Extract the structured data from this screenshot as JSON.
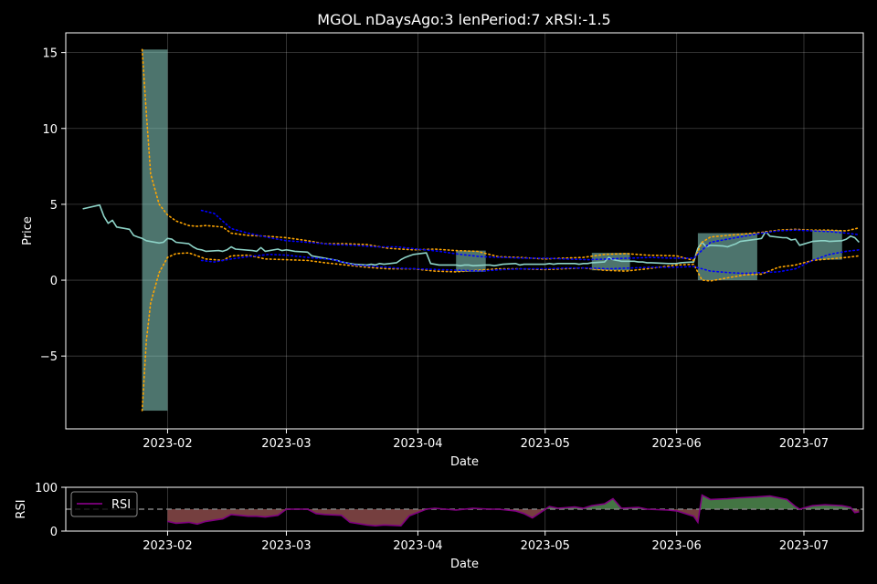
{
  "chart_data": [
    {
      "type": "line",
      "title": "MGOL nDaysAgo:3 lenPeriod:7 xRSI:-1.5",
      "xlabel": "Date",
      "ylabel": "Price",
      "xlim": [
        "2023-01-08",
        "2023-07-15"
      ],
      "ylim": [
        -9.8,
        16.3
      ],
      "yticks": [
        -5,
        0,
        5,
        10,
        15
      ],
      "ytick_labels": [
        "−5",
        "0",
        "5",
        "10",
        "15"
      ],
      "xticks": [
        "2023-02-01",
        "2023-03-01",
        "2023-04-01",
        "2023-05-01",
        "2023-06-01",
        "2023-07-01"
      ],
      "xtick_labels": [
        "2023-02",
        "2023-03",
        "2023-04",
        "2023-05",
        "2023-06",
        "2023-07"
      ],
      "grid": true,
      "colors": {
        "price": "#8dd3c7",
        "bollinger": "#ffa500",
        "envelope": "#0000ff",
        "band_fill": "#8dd3c7"
      },
      "series": [
        {
          "role": "price",
          "x": [
            "2023-01-12",
            "2023-01-16",
            "2023-01-17",
            "2023-01-18",
            "2023-01-19",
            "2023-01-20",
            "2023-01-23",
            "2023-01-24",
            "2023-01-25",
            "2023-01-26",
            "2023-01-27",
            "2023-01-30",
            "2023-01-31",
            "2023-02-01",
            "2023-02-02",
            "2023-02-03",
            "2023-02-06",
            "2023-02-07",
            "2023-02-08",
            "2023-02-09",
            "2023-02-10",
            "2023-02-13",
            "2023-02-14",
            "2023-02-15",
            "2023-02-16",
            "2023-02-17",
            "2023-02-21",
            "2023-02-22",
            "2023-02-23",
            "2023-02-24",
            "2023-02-27",
            "2023-02-28",
            "2023-03-01",
            "2023-03-02",
            "2023-03-03",
            "2023-03-06",
            "2023-03-07",
            "2023-03-08",
            "2023-03-09",
            "2023-03-10",
            "2023-03-13",
            "2023-03-14",
            "2023-03-15",
            "2023-03-16",
            "2023-03-17",
            "2023-03-20",
            "2023-03-21",
            "2023-03-22",
            "2023-03-23",
            "2023-03-24",
            "2023-03-27",
            "2023-03-28",
            "2023-03-29",
            "2023-03-30",
            "2023-03-31",
            "2023-04-03",
            "2023-04-04",
            "2023-04-05",
            "2023-04-06",
            "2023-04-10",
            "2023-04-11",
            "2023-04-12",
            "2023-04-13",
            "2023-04-14",
            "2023-04-17",
            "2023-04-18",
            "2023-04-19",
            "2023-04-20",
            "2023-04-21",
            "2023-04-24",
            "2023-04-25",
            "2023-04-26",
            "2023-04-27",
            "2023-04-28",
            "2023-05-01",
            "2023-05-02",
            "2023-05-03",
            "2023-05-04",
            "2023-05-05",
            "2023-05-08",
            "2023-05-09",
            "2023-05-10",
            "2023-05-11",
            "2023-05-12",
            "2023-05-15",
            "2023-05-16",
            "2023-05-17",
            "2023-05-18",
            "2023-05-19",
            "2023-05-22",
            "2023-05-23",
            "2023-05-24",
            "2023-05-25",
            "2023-05-26",
            "2023-05-30",
            "2023-05-31",
            "2023-06-01",
            "2023-06-02",
            "2023-06-05",
            "2023-06-06",
            "2023-06-07",
            "2023-06-08",
            "2023-06-09",
            "2023-06-12",
            "2023-06-13",
            "2023-06-14",
            "2023-06-15",
            "2023-06-16",
            "2023-06-20",
            "2023-06-21",
            "2023-06-22",
            "2023-06-23",
            "2023-06-26",
            "2023-06-27",
            "2023-06-28",
            "2023-06-29",
            "2023-06-30",
            "2023-07-03",
            "2023-07-05",
            "2023-07-06",
            "2023-07-07",
            "2023-07-10",
            "2023-07-11",
            "2023-07-12",
            "2023-07-13",
            "2023-07-14"
          ],
          "y": [
            4.7,
            4.95,
            4.2,
            3.75,
            3.95,
            3.5,
            3.35,
            2.95,
            2.85,
            2.75,
            2.6,
            2.45,
            2.5,
            2.75,
            2.7,
            2.5,
            2.4,
            2.2,
            2.05,
            2.0,
            1.9,
            1.95,
            1.9,
            2.0,
            2.2,
            2.05,
            1.95,
            1.9,
            2.15,
            1.9,
            2.05,
            1.95,
            2.0,
            1.95,
            1.9,
            1.85,
            1.6,
            1.55,
            1.5,
            1.45,
            1.3,
            1.2,
            1.15,
            1.1,
            1.05,
            1.0,
            1.05,
            1.0,
            1.1,
            1.05,
            1.15,
            1.35,
            1.5,
            1.6,
            1.7,
            1.8,
            1.1,
            1.05,
            1.0,
            1.0,
            0.95,
            1.0,
            1.0,
            0.95,
            1.0,
            1.0,
            0.95,
            1.0,
            1.05,
            1.1,
            1.0,
            1.05,
            1.05,
            1.05,
            1.05,
            1.1,
            1.05,
            1.1,
            1.1,
            1.1,
            1.05,
            1.1,
            1.1,
            1.15,
            1.2,
            1.5,
            1.35,
            1.3,
            1.25,
            1.25,
            1.2,
            1.2,
            1.15,
            1.15,
            1.1,
            1.1,
            1.1,
            1.15,
            1.2,
            2.1,
            2.5,
            2.2,
            2.3,
            2.25,
            2.2,
            2.3,
            2.4,
            2.55,
            2.7,
            2.75,
            3.2,
            2.9,
            2.8,
            2.8,
            2.65,
            2.7,
            2.3,
            2.55,
            2.6,
            2.6,
            2.55,
            2.6,
            2.7,
            2.9,
            2.8,
            2.5
          ]
        },
        {
          "role": "bollinger-upper",
          "x": [
            "2023-01-26",
            "2023-01-27",
            "2023-01-28",
            "2023-01-30",
            "2023-02-01",
            "2023-02-03",
            "2023-02-06",
            "2023-02-08",
            "2023-02-10",
            "2023-02-14",
            "2023-02-16",
            "2023-02-20",
            "2023-02-24",
            "2023-03-01",
            "2023-03-06",
            "2023-03-10",
            "2023-03-15",
            "2023-03-20",
            "2023-03-25",
            "2023-03-31",
            "2023-04-05",
            "2023-04-10",
            "2023-04-15",
            "2023-04-20",
            "2023-04-25",
            "2023-05-01",
            "2023-05-05",
            "2023-05-10",
            "2023-05-15",
            "2023-05-20",
            "2023-05-25",
            "2023-06-01",
            "2023-06-05",
            "2023-06-07",
            "2023-06-09",
            "2023-06-13",
            "2023-06-17",
            "2023-06-21",
            "2023-06-25",
            "2023-06-29",
            "2023-07-03",
            "2023-07-07",
            "2023-07-11",
            "2023-07-14"
          ],
          "y": [
            15.2,
            11.0,
            7.0,
            5.0,
            4.3,
            3.9,
            3.6,
            3.55,
            3.6,
            3.5,
            3.1,
            2.95,
            2.9,
            2.8,
            2.6,
            2.4,
            2.4,
            2.35,
            2.1,
            2.0,
            2.05,
            1.95,
            1.9,
            1.55,
            1.5,
            1.4,
            1.45,
            1.5,
            1.7,
            1.75,
            1.65,
            1.6,
            1.3,
            2.5,
            2.85,
            2.95,
            3.05,
            3.15,
            3.3,
            3.35,
            3.3,
            3.3,
            3.25,
            3.45
          ]
        },
        {
          "role": "bollinger-lower",
          "x": [
            "2023-01-26",
            "2023-01-27",
            "2023-01-28",
            "2023-01-30",
            "2023-02-01",
            "2023-02-03",
            "2023-02-06",
            "2023-02-08",
            "2023-02-10",
            "2023-02-14",
            "2023-02-16",
            "2023-02-20",
            "2023-02-24",
            "2023-03-01",
            "2023-03-06",
            "2023-03-10",
            "2023-03-15",
            "2023-03-20",
            "2023-03-25",
            "2023-03-31",
            "2023-04-05",
            "2023-04-10",
            "2023-04-15",
            "2023-04-20",
            "2023-04-25",
            "2023-05-01",
            "2023-05-05",
            "2023-05-10",
            "2023-05-15",
            "2023-05-20",
            "2023-05-25",
            "2023-06-01",
            "2023-06-05",
            "2023-06-07",
            "2023-06-09",
            "2023-06-13",
            "2023-06-17",
            "2023-06-21",
            "2023-06-25",
            "2023-06-29",
            "2023-07-03",
            "2023-07-07",
            "2023-07-11",
            "2023-07-14"
          ],
          "y": [
            -8.6,
            -4.0,
            -1.5,
            0.5,
            1.5,
            1.75,
            1.8,
            1.6,
            1.4,
            1.3,
            1.6,
            1.65,
            1.4,
            1.35,
            1.3,
            1.15,
            1.0,
            0.85,
            0.75,
            0.75,
            0.6,
            0.55,
            0.65,
            0.75,
            0.75,
            0.7,
            0.75,
            0.8,
            0.65,
            0.6,
            0.75,
            1.0,
            1.05,
            0.0,
            -0.05,
            0.15,
            0.35,
            0.4,
            0.85,
            1.0,
            1.3,
            1.4,
            1.5,
            1.6
          ]
        },
        {
          "role": "envelope-upper",
          "x": [
            "2023-02-09",
            "2023-02-12",
            "2023-02-16",
            "2023-02-20",
            "2023-02-25",
            "2023-03-01",
            "2023-03-06",
            "2023-03-12",
            "2023-03-17",
            "2023-03-22",
            "2023-03-27",
            "2023-04-01",
            "2023-04-06",
            "2023-04-11",
            "2023-04-16",
            "2023-04-21",
            "2023-04-26",
            "2023-05-01",
            "2023-05-06",
            "2023-05-11",
            "2023-05-16",
            "2023-05-21",
            "2023-05-26",
            "2023-05-31",
            "2023-06-05",
            "2023-06-09",
            "2023-06-13",
            "2023-06-17",
            "2023-06-21",
            "2023-06-25",
            "2023-06-29",
            "2023-07-03",
            "2023-07-07",
            "2023-07-11",
            "2023-07-14"
          ],
          "y": [
            4.6,
            4.4,
            3.4,
            3.1,
            2.8,
            2.6,
            2.5,
            2.35,
            2.3,
            2.2,
            2.2,
            2.05,
            1.9,
            1.7,
            1.55,
            1.5,
            1.45,
            1.45,
            1.4,
            1.35,
            1.4,
            1.45,
            1.5,
            1.45,
            1.45,
            2.5,
            2.7,
            2.9,
            3.1,
            3.25,
            3.3,
            3.25,
            3.2,
            3.1,
            3.0
          ]
        },
        {
          "role": "envelope-lower",
          "x": [
            "2023-02-09",
            "2023-02-12",
            "2023-02-16",
            "2023-02-20",
            "2023-02-25",
            "2023-03-01",
            "2023-03-06",
            "2023-03-12",
            "2023-03-17",
            "2023-03-22",
            "2023-03-27",
            "2023-04-01",
            "2023-04-06",
            "2023-04-11",
            "2023-04-16",
            "2023-04-21",
            "2023-04-26",
            "2023-05-01",
            "2023-05-06",
            "2023-05-11",
            "2023-05-16",
            "2023-05-21",
            "2023-05-26",
            "2023-05-31",
            "2023-06-05",
            "2023-06-09",
            "2023-06-13",
            "2023-06-17",
            "2023-06-21",
            "2023-06-25",
            "2023-06-29",
            "2023-07-03",
            "2023-07-07",
            "2023-07-11",
            "2023-07-14"
          ],
          "y": [
            1.3,
            1.2,
            1.4,
            1.55,
            1.7,
            1.65,
            1.5,
            1.35,
            1.0,
            0.9,
            0.8,
            0.75,
            0.7,
            0.65,
            0.6,
            0.7,
            0.75,
            0.75,
            0.8,
            0.8,
            0.75,
            0.8,
            0.85,
            0.85,
            0.9,
            0.6,
            0.5,
            0.45,
            0.5,
            0.55,
            0.75,
            1.3,
            1.7,
            1.9,
            2.0
          ]
        }
      ],
      "bands": [
        {
          "start": "2023-01-26",
          "end": "2023-02-01",
          "lo": -8.6,
          "hi": 15.2
        },
        {
          "start": "2023-04-10",
          "end": "2023-04-17",
          "lo": 0.55,
          "hi": 1.95
        },
        {
          "start": "2023-05-12",
          "end": "2023-05-21",
          "lo": 0.65,
          "hi": 1.8
        },
        {
          "start": "2023-06-06",
          "end": "2023-06-20",
          "lo": 0.0,
          "hi": 3.1
        },
        {
          "start": "2023-07-03",
          "end": "2023-07-10",
          "lo": 1.35,
          "hi": 3.3
        }
      ]
    },
    {
      "type": "area",
      "xlabel": "Date",
      "ylabel": "RSI",
      "xlim": [
        "2023-01-08",
        "2023-07-15"
      ],
      "ylim": [
        0,
        100
      ],
      "yticks": [
        0,
        100
      ],
      "ytick_labels": [
        "0",
        "100"
      ],
      "xticks": [
        "2023-02-01",
        "2023-03-01",
        "2023-04-01",
        "2023-05-01",
        "2023-06-01",
        "2023-07-01"
      ],
      "xtick_labels": [
        "2023-02",
        "2023-03",
        "2023-04",
        "2023-05",
        "2023-06",
        "2023-07"
      ],
      "grid": true,
      "baseline": 50,
      "legend": {
        "position": "top-left",
        "entries": [
          "RSI"
        ]
      },
      "colors": {
        "line": "#800080",
        "above": "#4f8a4f",
        "below": "#8a4a4a",
        "baseline": "#808080"
      },
      "series": [
        {
          "name": "RSI",
          "x": [
            "2023-02-01",
            "2023-02-03",
            "2023-02-06",
            "2023-02-08",
            "2023-02-10",
            "2023-02-14",
            "2023-02-16",
            "2023-02-20",
            "2023-02-22",
            "2023-02-24",
            "2023-02-27",
            "2023-03-01",
            "2023-03-03",
            "2023-03-06",
            "2023-03-08",
            "2023-03-10",
            "2023-03-14",
            "2023-03-16",
            "2023-03-20",
            "2023-03-22",
            "2023-03-24",
            "2023-03-28",
            "2023-03-30",
            "2023-04-03",
            "2023-04-05",
            "2023-04-10",
            "2023-04-14",
            "2023-04-18",
            "2023-04-20",
            "2023-04-24",
            "2023-04-26",
            "2023-04-28",
            "2023-05-02",
            "2023-05-04",
            "2023-05-08",
            "2023-05-10",
            "2023-05-12",
            "2023-05-15",
            "2023-05-17",
            "2023-05-19",
            "2023-05-23",
            "2023-05-25",
            "2023-05-30",
            "2023-06-01",
            "2023-06-05",
            "2023-06-06",
            "2023-06-07",
            "2023-06-09",
            "2023-06-13",
            "2023-06-16",
            "2023-06-20",
            "2023-06-23",
            "2023-06-27",
            "2023-06-29",
            "2023-06-30",
            "2023-07-03",
            "2023-07-06",
            "2023-07-10",
            "2023-07-12",
            "2023-07-13",
            "2023-07-14"
          ],
          "y": [
            22,
            18,
            20,
            16,
            22,
            28,
            38,
            34,
            34,
            32,
            36,
            50,
            50,
            50,
            40,
            38,
            36,
            20,
            14,
            12,
            14,
            12,
            35,
            50,
            52,
            48,
            52,
            50,
            50,
            46,
            40,
            30,
            56,
            52,
            55,
            52,
            58,
            62,
            74,
            52,
            54,
            50,
            48,
            46,
            34,
            20,
            82,
            72,
            74,
            76,
            78,
            80,
            72,
            56,
            50,
            58,
            60,
            58,
            54,
            42,
            44
          ]
        }
      ]
    }
  ]
}
